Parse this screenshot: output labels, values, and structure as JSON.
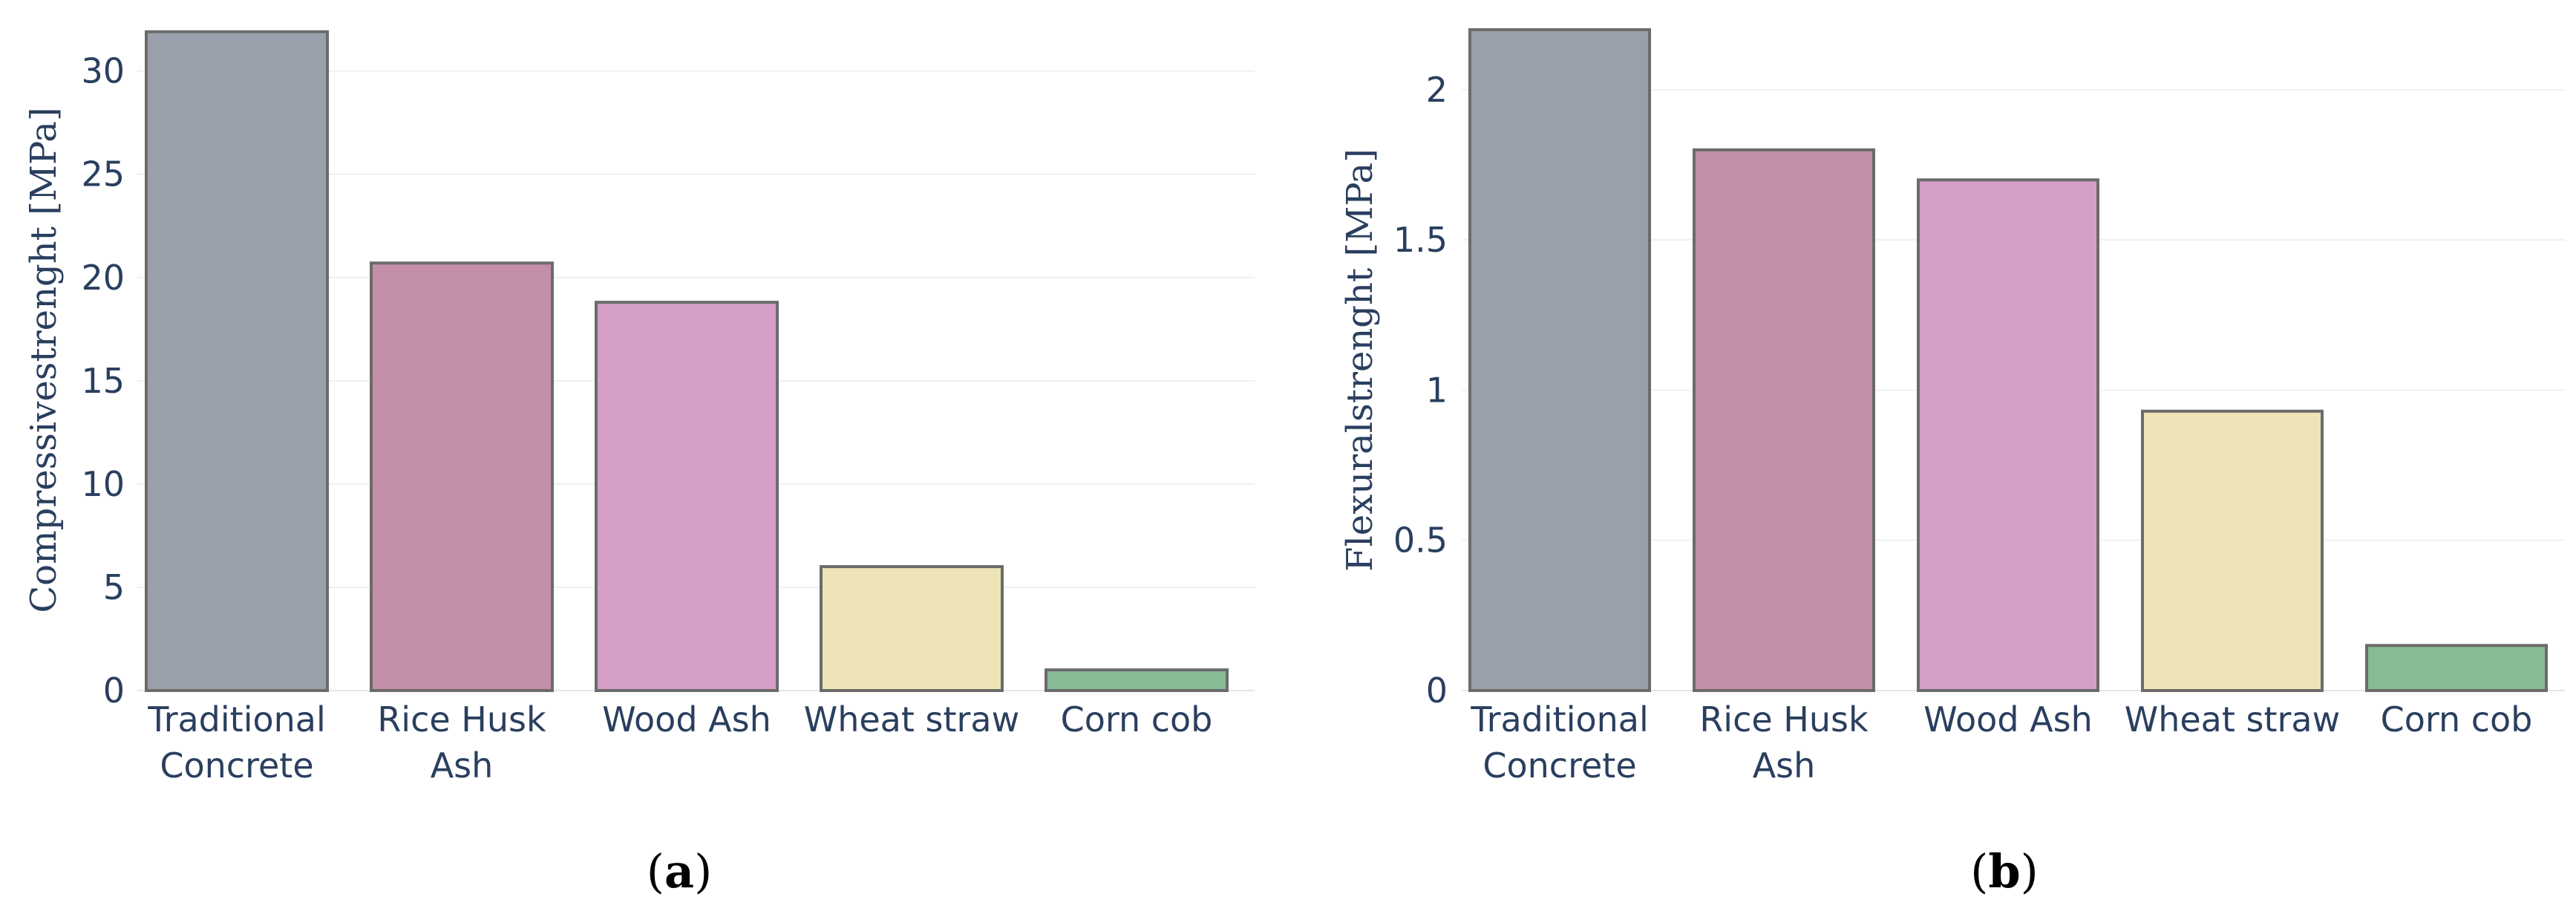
{
  "chart_data": [
    {
      "type": "bar",
      "panel_label": "a",
      "categories": [
        [
          "Traditional",
          "Concrete"
        ],
        [
          "Rice Husk",
          "Ash"
        ],
        [
          "Wood Ash"
        ],
        [
          "Wheat straw"
        ],
        [
          "Corn cob"
        ]
      ],
      "values": [
        31.9,
        20.7,
        18.8,
        6.0,
        1.0
      ],
      "bar_colors": [
        "#9aa0ab",
        "#c48fa8",
        "#d59fc8",
        "#ede4b8",
        "#86bb95"
      ],
      "ylabel": "Compressivestrenght [MPa]",
      "ylim": [
        0,
        32
      ],
      "yticks": [
        0,
        5,
        10,
        15,
        20,
        25,
        30
      ],
      "ytick_labels": [
        "0",
        "5",
        "10",
        "15",
        "20",
        "25",
        "30"
      ],
      "grid": true
    },
    {
      "type": "bar",
      "panel_label": "b",
      "categories": [
        [
          "Traditional",
          "Concrete"
        ],
        [
          "Rice Husk",
          "Ash"
        ],
        [
          "Wood Ash"
        ],
        [
          "Wheat straw"
        ],
        [
          "Corn cob"
        ]
      ],
      "values": [
        2.2,
        1.8,
        1.7,
        0.93,
        0.15
      ],
      "bar_colors": [
        "#9aa0ab",
        "#c48fa8",
        "#d59fc8",
        "#ede4b8",
        "#86bb95"
      ],
      "ylabel": "Flexuralstrenght [MPa]",
      "ylim": [
        0,
        2.2
      ],
      "yticks": [
        0,
        0.5,
        1,
        1.5,
        2
      ],
      "ytick_labels": [
        "0",
        "0.5",
        "1",
        "1.5",
        "2"
      ],
      "grid": true
    }
  ]
}
